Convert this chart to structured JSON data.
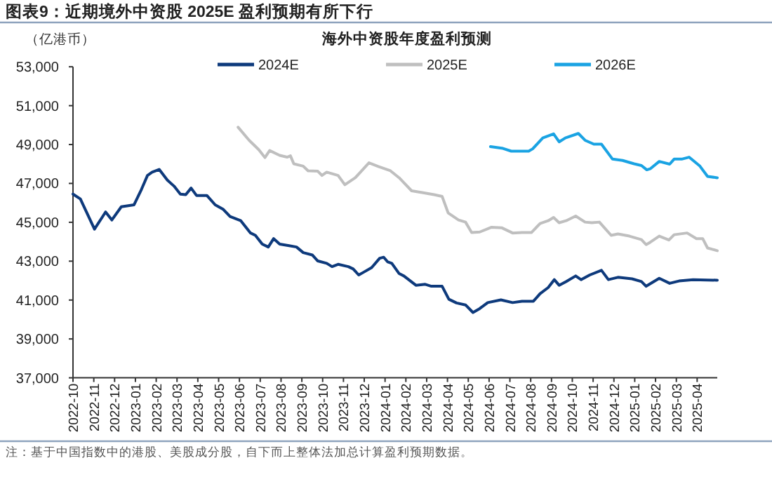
{
  "chart_data": {
    "type": "line",
    "title": "图表9：近期境外中资股 2025E 盈利预期有所下行",
    "subtitle": "海外中资股年度盈利预测",
    "ylabel": "（亿港币）",
    "annotations": [
      "注：基于中国指数中的港股、美股成分股，自下而上整体法加总计算盈利预期数据。"
    ],
    "legend": "top",
    "xlim": [
      "2022-10-01",
      "2025-04-30"
    ],
    "xticks": [
      "2022-10",
      "2022-11",
      "2022-12",
      "2023-01",
      "2023-02",
      "2023-03",
      "2023-04",
      "2023-05",
      "2023-06",
      "2023-07",
      "2023-08",
      "2023-09",
      "2023-10",
      "2023-11",
      "2023-12",
      "2024-01",
      "2024-02",
      "2024-03",
      "2024-04",
      "2024-05",
      "2024-06",
      "2024-07",
      "2024-08",
      "2024-09",
      "2024-10",
      "2024-11",
      "2024-12",
      "2025-01",
      "2025-02",
      "2025-03",
      "2025-04"
    ],
    "ylim": [
      37000,
      53000
    ],
    "yticks": [
      {
        "value": 37000,
        "label": "37,000"
      },
      {
        "value": 39000,
        "label": "39,000"
      },
      {
        "value": 41000,
        "label": "41,000"
      },
      {
        "value": 43000,
        "label": "43,000"
      },
      {
        "value": 45000,
        "label": "45,000"
      },
      {
        "value": 47000,
        "label": "47,000"
      },
      {
        "value": 49000,
        "label": "49,000"
      },
      {
        "value": 51000,
        "label": "51,000"
      },
      {
        "value": 53000,
        "label": "53,000"
      }
    ],
    "series": [
      {
        "name": "2024E",
        "color": "#0e3a7c",
        "x": [
          "2022-10-01",
          "2022-10-12",
          "2022-11-02",
          "2022-11-18",
          "2022-11-27",
          "2022-12-11",
          "2022-12-30",
          "2023-01-10",
          "2023-01-19",
          "2023-01-26",
          "2023-02-05",
          "2023-02-16",
          "2023-02-25",
          "2023-03-06",
          "2023-03-14",
          "2023-03-22",
          "2023-03-30",
          "2023-04-14",
          "2023-04-26",
          "2023-05-08",
          "2023-05-18",
          "2023-06-03",
          "2023-06-17",
          "2023-06-24",
          "2023-07-04",
          "2023-07-13",
          "2023-07-21",
          "2023-07-30",
          "2023-08-13",
          "2023-08-24",
          "2023-09-03",
          "2023-09-16",
          "2023-09-24",
          "2023-10-07",
          "2023-10-15",
          "2023-10-24",
          "2023-11-08",
          "2023-11-15",
          "2023-11-23",
          "2023-11-30",
          "2023-12-12",
          "2023-12-24",
          "2023-12-30",
          "2024-01-05",
          "2024-01-11",
          "2024-01-22",
          "2024-01-29",
          "2024-02-15",
          "2024-02-28",
          "2024-03-08",
          "2024-03-24",
          "2024-04-03",
          "2024-04-14",
          "2024-04-27",
          "2024-05-08",
          "2024-05-18",
          "2024-05-30",
          "2024-06-18",
          "2024-07-05",
          "2024-07-19",
          "2024-08-05",
          "2024-08-15",
          "2024-08-27",
          "2024-09-05",
          "2024-09-12",
          "2024-09-22",
          "2024-10-06",
          "2024-10-14",
          "2024-10-27",
          "2024-11-13",
          "2024-11-23",
          "2024-12-07",
          "2024-12-28",
          "2025-01-11",
          "2025-01-18",
          "2025-02-06",
          "2025-02-20",
          "2025-03-05",
          "2025-03-26",
          "2025-04-30"
        ],
        "values": [
          46450,
          46200,
          44650,
          45530,
          45120,
          45800,
          45900,
          46690,
          47410,
          47580,
          47720,
          47170,
          46860,
          46450,
          46420,
          46760,
          46380,
          46380,
          45900,
          45660,
          45300,
          45080,
          44450,
          44330,
          43880,
          43730,
          44160,
          43880,
          43800,
          43730,
          43440,
          43320,
          43010,
          42890,
          42720,
          42840,
          42720,
          42600,
          42290,
          42430,
          42670,
          43150,
          43200,
          42960,
          42890,
          42360,
          42240,
          41760,
          41810,
          41710,
          41710,
          41040,
          40850,
          40750,
          40360,
          40560,
          40870,
          41010,
          40870,
          40940,
          40940,
          41330,
          41640,
          42050,
          41760,
          41950,
          42240,
          42050,
          42290,
          42530,
          42050,
          42170,
          42090,
          41950,
          41710,
          42120,
          41860,
          41980,
          42050,
          42020
        ]
      },
      {
        "name": "2025E",
        "color": "#bfbfbf",
        "x": [
          "2023-05-30",
          "2023-06-15",
          "2023-06-29",
          "2023-07-08",
          "2023-07-15",
          "2023-07-30",
          "2023-08-10",
          "2023-08-15",
          "2023-08-20",
          "2023-09-03",
          "2023-09-10",
          "2023-09-24",
          "2023-09-30",
          "2023-10-07",
          "2023-10-24",
          "2023-11-03",
          "2023-11-18",
          "2023-12-08",
          "2023-12-22",
          "2024-01-09",
          "2024-01-22",
          "2024-02-09",
          "2024-02-25",
          "2024-03-12",
          "2024-03-24",
          "2024-04-02",
          "2024-04-17",
          "2024-04-27",
          "2024-05-06",
          "2024-05-18",
          "2024-06-04",
          "2024-06-19",
          "2024-07-05",
          "2024-07-19",
          "2024-08-02",
          "2024-08-15",
          "2024-08-27",
          "2024-09-04",
          "2024-09-12",
          "2024-09-22",
          "2024-10-06",
          "2024-10-20",
          "2024-10-30",
          "2024-11-10",
          "2024-11-27",
          "2024-12-07",
          "2024-12-24",
          "2025-01-11",
          "2025-01-18",
          "2025-01-24",
          "2025-02-06",
          "2025-02-19",
          "2025-02-26",
          "2025-03-17",
          "2025-03-31",
          "2025-04-09",
          "2025-04-16",
          "2025-04-30"
        ],
        "values": [
          49890,
          49220,
          48730,
          48330,
          48690,
          48440,
          48350,
          48420,
          48010,
          47890,
          47650,
          47630,
          47410,
          47580,
          47410,
          46930,
          47290,
          48060,
          47870,
          47650,
          47290,
          46620,
          46520,
          46420,
          46330,
          45480,
          45120,
          45010,
          44470,
          44500,
          44740,
          44720,
          44450,
          44470,
          44470,
          44940,
          45080,
          45250,
          44980,
          45080,
          45320,
          45010,
          44980,
          45010,
          44330,
          44400,
          44290,
          44110,
          43850,
          43970,
          44290,
          44090,
          44360,
          44450,
          44160,
          44160,
          43680,
          43540
        ]
      },
      {
        "name": "2026E",
        "color": "#1aa3e3",
        "x": [
          "2024-06-03",
          "2024-06-21",
          "2024-07-03",
          "2024-07-29",
          "2024-08-04",
          "2024-08-19",
          "2024-09-04",
          "2024-09-12",
          "2024-09-21",
          "2024-10-10",
          "2024-10-20",
          "2024-11-02",
          "2024-11-13",
          "2024-11-29",
          "2024-12-14",
          "2024-12-31",
          "2025-01-11",
          "2025-01-19",
          "2025-01-24",
          "2025-02-06",
          "2025-02-20",
          "2025-02-26",
          "2025-03-09",
          "2025-03-20",
          "2025-04-05",
          "2025-04-16",
          "2025-04-30"
        ],
        "values": [
          48890,
          48800,
          48660,
          48660,
          48780,
          49340,
          49550,
          49140,
          49340,
          49570,
          49220,
          49020,
          49020,
          48250,
          48180,
          48010,
          47920,
          47700,
          47750,
          48130,
          47990,
          48250,
          48250,
          48350,
          47890,
          47360,
          47290
        ]
      }
    ]
  }
}
